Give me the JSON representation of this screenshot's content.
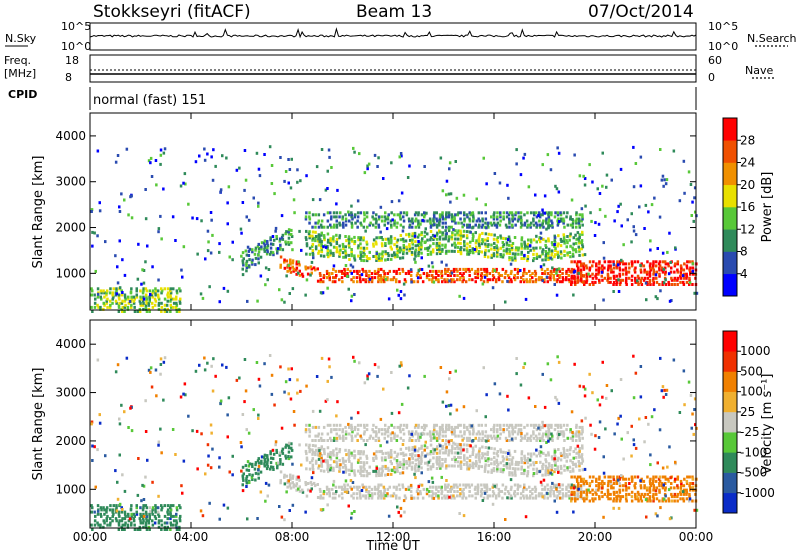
{
  "header": {
    "station": "Stokkseyri (fitACF)",
    "beam": "Beam 13",
    "date": "07/Oct/2014"
  },
  "noise_panel": {
    "left_label": "N.Sky",
    "right_label": "N.Search",
    "left_ticks": [
      "10^5",
      "10^0"
    ],
    "right_ticks": [
      "10^5",
      "10^0"
    ]
  },
  "freq_panel": {
    "left_label_1": "Freq.",
    "left_label_2": "[MHz]",
    "right_label": "Nave",
    "left_ticks": [
      "18",
      "8"
    ],
    "right_ticks": [
      "60",
      "0"
    ]
  },
  "cpid": {
    "label": "CPID",
    "value": "normal (fast) 151"
  },
  "chart_data": [
    {
      "type": "heatmap",
      "panel": "power",
      "ylabel": "Slant Range [km]",
      "yticks": [
        "1000",
        "2000",
        "3000",
        "4000"
      ],
      "ylim": [
        200,
        4500
      ],
      "xlim_hours": [
        0,
        24
      ],
      "colorbar": {
        "label": "Power [dB]",
        "ticks": [
          "4",
          "8",
          "12",
          "16",
          "20",
          "24",
          "28"
        ],
        "colors": [
          "#0000ff",
          "#2a4bb0",
          "#2f8a5a",
          "#58c838",
          "#e8e000",
          "#f09000",
          "#f05000",
          "#ff0000"
        ]
      }
    },
    {
      "type": "heatmap",
      "panel": "velocity",
      "ylabel": "Slant Range [km]",
      "yticks": [
        "1000",
        "2000",
        "3000",
        "4000"
      ],
      "ylim": [
        200,
        4500
      ],
      "xlim_hours": [
        0,
        24
      ],
      "colorbar": {
        "label": "Velocity [m s⁻¹]",
        "ticks": [
          "1000",
          "500",
          "100",
          "25",
          "-25",
          "-100",
          "-500",
          "-1000"
        ],
        "colors": [
          "#0a2cc8",
          "#2a5aa0",
          "#2f8a5a",
          "#58c838",
          "#c8c8c0",
          "#f0b030",
          "#f08000",
          "#f03000",
          "#ff0000"
        ]
      }
    }
  ],
  "xaxis": {
    "ticks": [
      "00:00",
      "04:00",
      "08:00",
      "12:00",
      "16:00",
      "20:00",
      "00:00"
    ],
    "label": "Time UT"
  }
}
